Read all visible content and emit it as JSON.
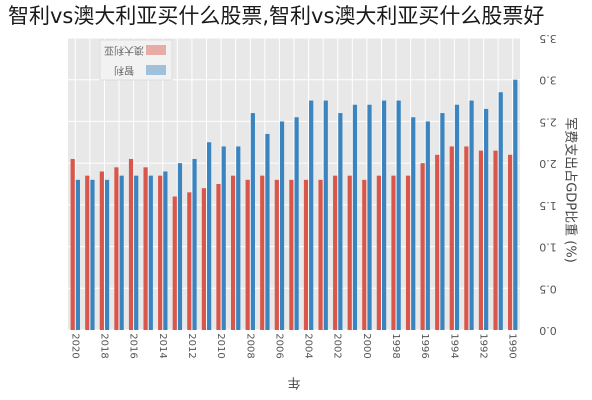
{
  "headline": "智利vs澳大利亚买什么股票,智利vs澳大利亚买什么股票好",
  "chart_data": {
    "type": "bar",
    "orientation": "rotated-180",
    "title": "",
    "xlabel": "年",
    "ylabel": "军费支出占GDP比重 (%)",
    "ylim": [
      0,
      3.5
    ],
    "yticks": [
      "0.0",
      "0.5",
      "1.0",
      "1.5",
      "2.0",
      "2.5",
      "3.0",
      "3.5"
    ],
    "grid": true,
    "legend_position": "top-right",
    "categories": [
      "1990",
      "1991",
      "1992",
      "1993",
      "1994",
      "1995",
      "1996",
      "1997",
      "1998",
      "1999",
      "2000",
      "2001",
      "2002",
      "2003",
      "2004",
      "2005",
      "2006",
      "2007",
      "2008",
      "2009",
      "2010",
      "2011",
      "2012",
      "2013",
      "2014",
      "2015",
      "2016",
      "2017",
      "2018",
      "2019",
      "2020"
    ],
    "category_labels": [
      "1990",
      "",
      "1992",
      "",
      "1994",
      "",
      "1996",
      "",
      "1998",
      "",
      "2000",
      "",
      "2002",
      "",
      "2004",
      "",
      "2006",
      "",
      "2008",
      "",
      "2010",
      "",
      "2012",
      "",
      "2014",
      "",
      "2016",
      "",
      "2018",
      "",
      "2020"
    ],
    "series": [
      {
        "name": "澳大利亚",
        "color": "#d9574a",
        "values": [
          2.1,
          2.15,
          2.15,
          2.2,
          2.2,
          2.1,
          2.0,
          1.85,
          1.85,
          1.85,
          1.8,
          1.85,
          1.85,
          1.8,
          1.8,
          1.8,
          1.8,
          1.85,
          1.8,
          1.85,
          1.75,
          1.7,
          1.65,
          1.6,
          1.85,
          1.95,
          2.05,
          1.95,
          1.9,
          1.85,
          2.05
        ]
      },
      {
        "name": "智利",
        "color": "#3a84c0",
        "values": [
          3.0,
          2.85,
          2.65,
          2.75,
          2.7,
          2.6,
          2.5,
          2.55,
          2.75,
          2.75,
          2.7,
          2.7,
          2.6,
          2.75,
          2.75,
          2.55,
          2.5,
          2.35,
          2.6,
          2.2,
          2.2,
          2.25,
          2.05,
          2.0,
          1.9,
          1.85,
          1.85,
          1.85,
          1.8,
          1.8,
          1.8
        ]
      }
    ]
  }
}
